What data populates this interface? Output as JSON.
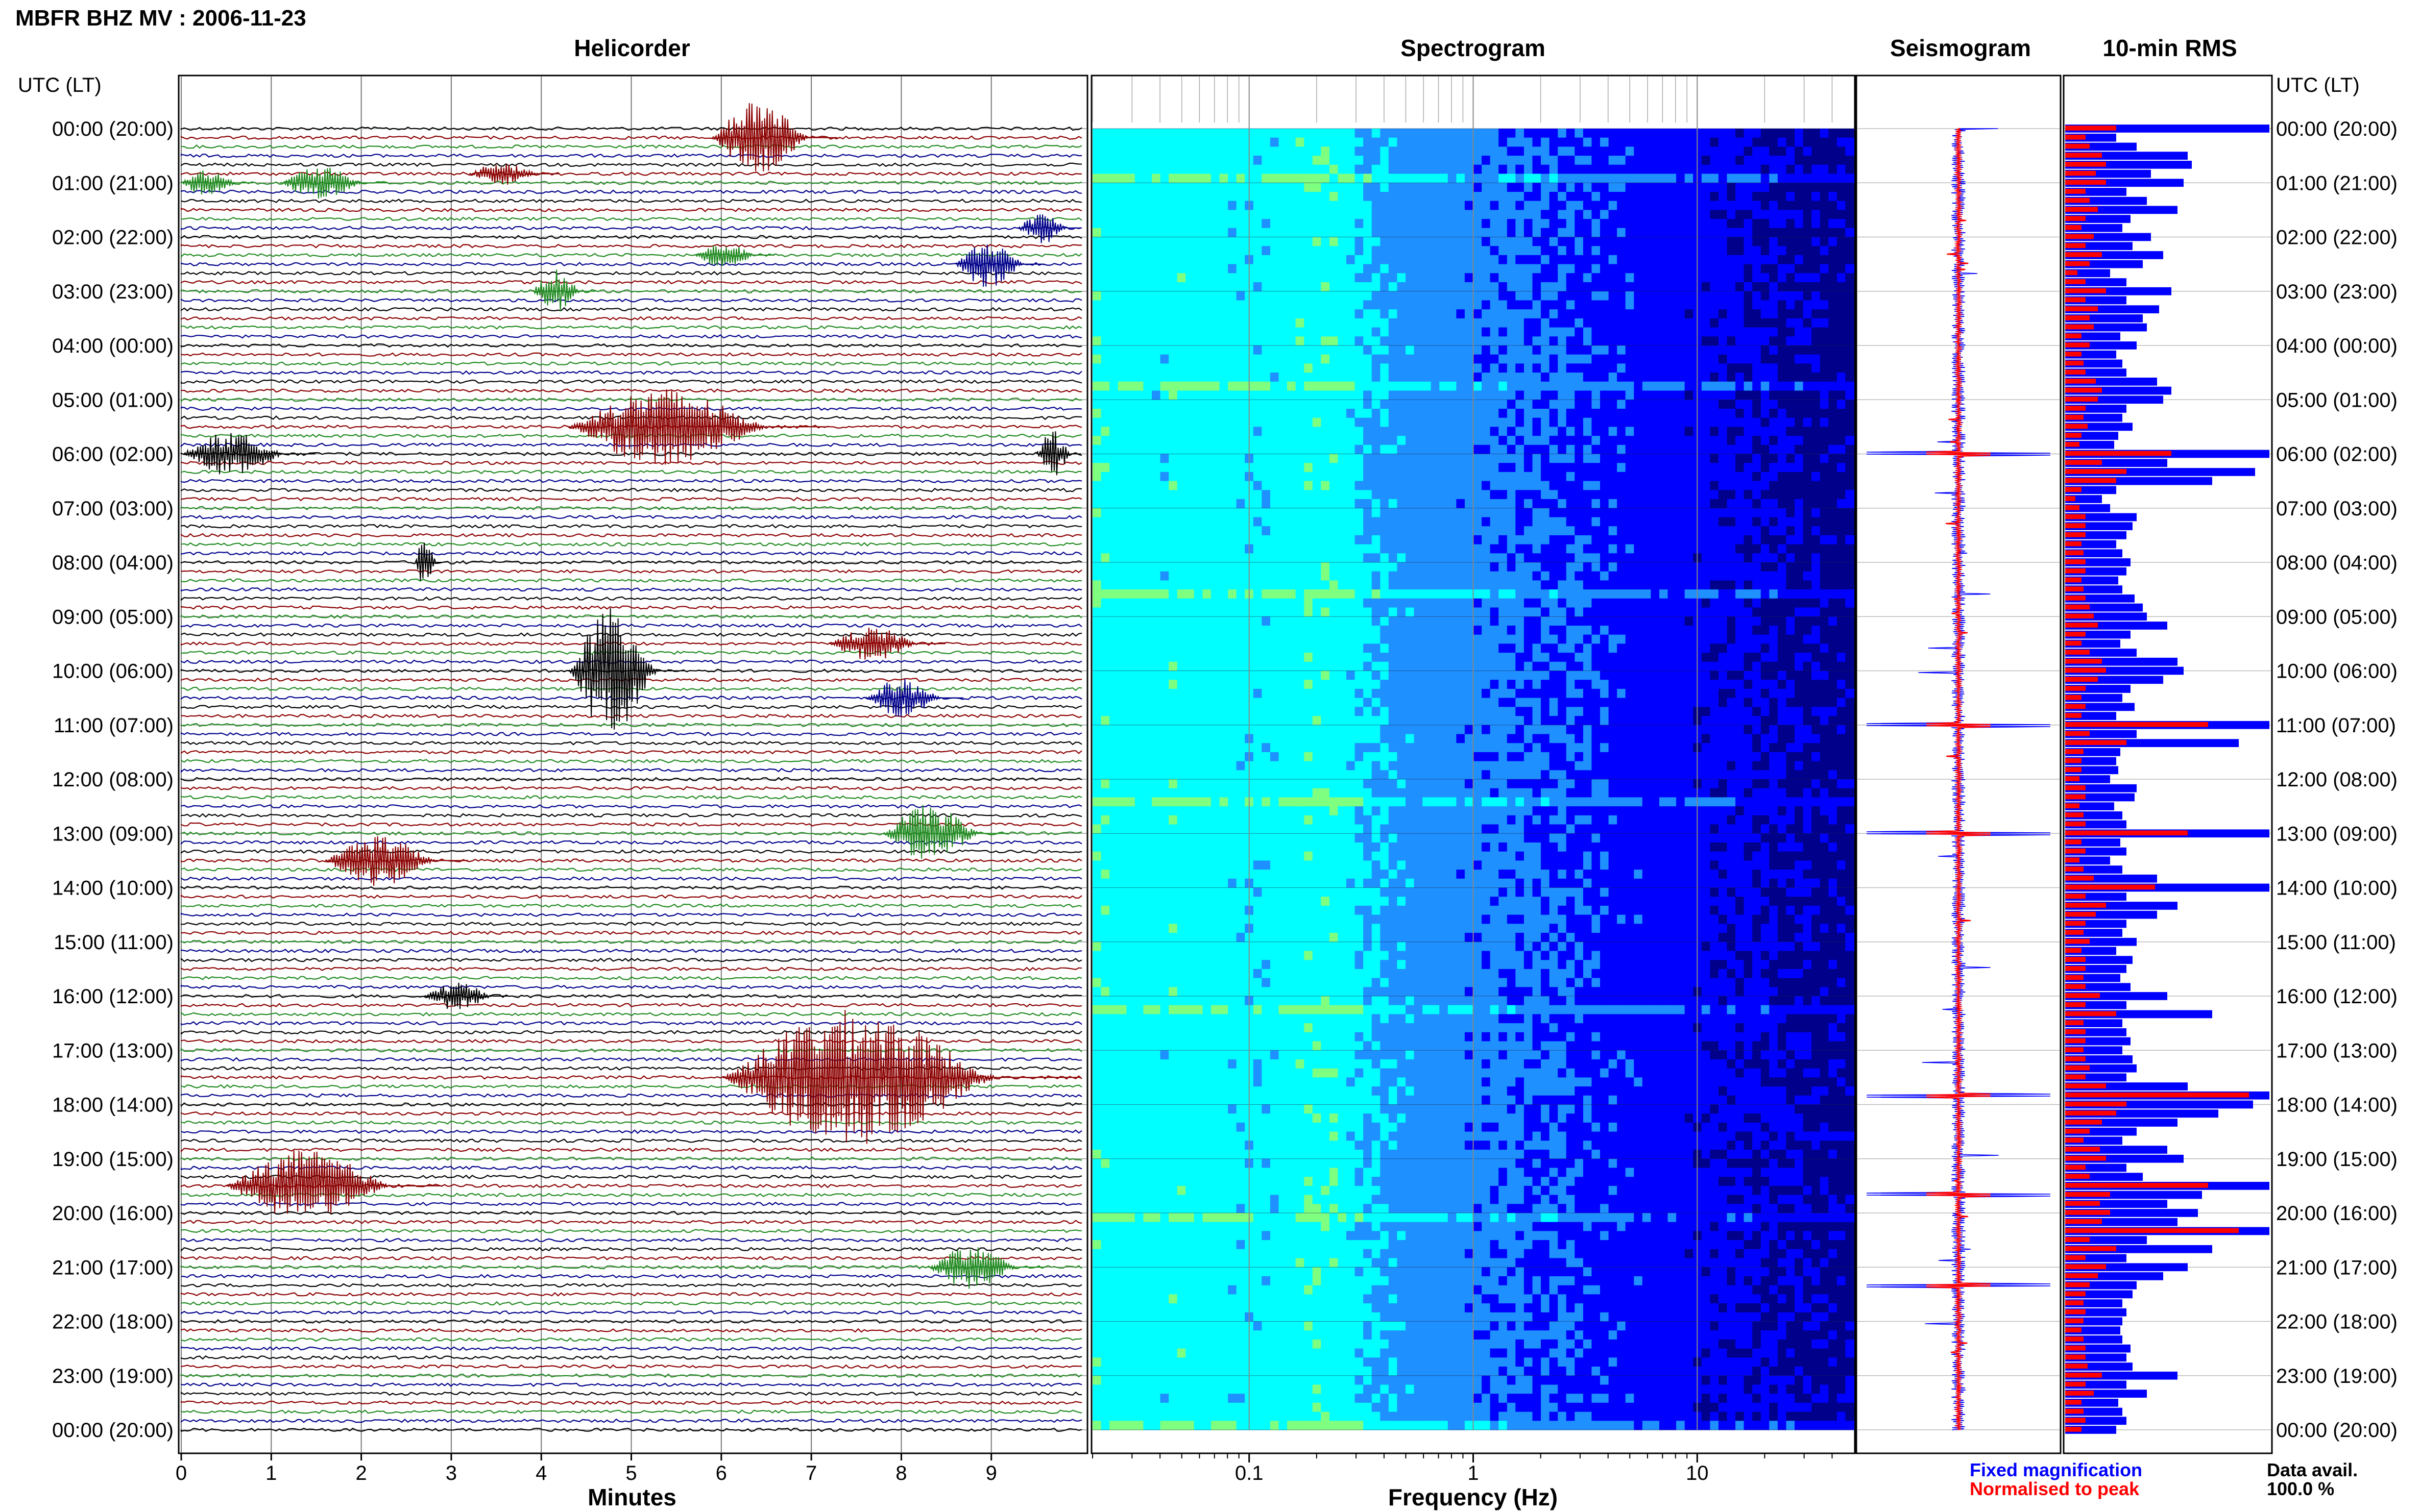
{
  "figure_title": "MBFR BHZ MV : 2006-11-23",
  "panels": {
    "helicorder": {
      "title": "Helicorder",
      "xlabel": "Minutes"
    },
    "spectrogram": {
      "title": "Spectrogram",
      "xlabel": "Frequency (Hz)"
    },
    "seismogram": {
      "title": "Seismogram"
    },
    "rms": {
      "title": "10-min RMS"
    }
  },
  "time_axis_label": "UTC (LT)",
  "time_labels": [
    "00:00 (20:00)",
    "01:00 (21:00)",
    "02:00 (22:00)",
    "03:00 (23:00)",
    "04:00 (00:00)",
    "05:00 (01:00)",
    "06:00 (02:00)",
    "07:00 (03:00)",
    "08:00 (04:00)",
    "09:00 (05:00)",
    "10:00 (06:00)",
    "11:00 (07:00)",
    "12:00 (08:00)",
    "13:00 (09:00)",
    "14:00 (10:00)",
    "15:00 (11:00)",
    "16:00 (12:00)",
    "17:00 (13:00)",
    "18:00 (14:00)",
    "19:00 (15:00)",
    "20:00 (16:00)",
    "21:00 (17:00)",
    "22:00 (18:00)",
    "23:00 (19:00)",
    "00:00 (20:00)"
  ],
  "minute_ticks": [
    "0",
    "1",
    "2",
    "3",
    "4",
    "5",
    "6",
    "7",
    "8",
    "9"
  ],
  "freq_ticks": [
    "0.1",
    "1",
    "10"
  ],
  "legend": {
    "fixed": "Fixed magnification",
    "normalised": "Normalised to peak",
    "fixed_color": "#0000ff",
    "normalised_color": "#ff0000"
  },
  "data_avail": {
    "label": "Data avail.",
    "value": "100.0 %"
  },
  "colors": {
    "trace_cycle": [
      "#000000",
      "#8b0000",
      "#228b22",
      "#00008b"
    ],
    "rms_fixed": "#0000ff",
    "rms_norm": "#ff0000"
  },
  "chart_data": [
    {
      "type": "line",
      "name": "helicorder",
      "x_unit": "minutes",
      "xlim": [
        0,
        10
      ],
      "rows_per_hour": 6,
      "time_range_utc": [
        "00:00",
        "24:00"
      ],
      "series": [
        {
          "hour": 0.0,
          "row": 1,
          "start": 5.9,
          "end": 7.3,
          "amp": 1.6
        },
        {
          "hour": 0.0,
          "row": 5,
          "start": 3.2,
          "end": 4.2,
          "amp": 0.5
        },
        {
          "hour": 0.5,
          "row": 3,
          "start": 1.1,
          "end": 2.3,
          "amp": 0.7
        },
        {
          "hour": 1.0,
          "row": 0,
          "start": 0.0,
          "end": 0.8,
          "amp": 0.6
        },
        {
          "hour": 1.0,
          "row": 5,
          "start": 9.3,
          "end": 10.0,
          "amp": 0.7
        },
        {
          "hour": 2.0,
          "row": 2,
          "start": 5.7,
          "end": 6.6,
          "amp": 0.5
        },
        {
          "hour": 2.5,
          "row": 0,
          "start": 8.6,
          "end": 9.6,
          "amp": 1.0
        },
        {
          "hour": 3.0,
          "row": 0,
          "start": 3.9,
          "end": 4.6,
          "amp": 0.9
        },
        {
          "hour": 5.5,
          "row": 0,
          "start": 4.3,
          "end": 7.2,
          "amp": 1.6
        },
        {
          "hour": 6.0,
          "row": 0,
          "start": 0.0,
          "end": 1.5,
          "amp": 0.9
        },
        {
          "hour": 6.0,
          "row": 0,
          "start": 9.5,
          "end": 10.0,
          "amp": 1.0
        },
        {
          "hour": 8.0,
          "row": 0,
          "start": 2.6,
          "end": 2.9,
          "amp": 1.1
        },
        {
          "hour": 9.5,
          "row": 0,
          "start": 7.2,
          "end": 8.5,
          "amp": 0.7
        },
        {
          "hour": 10.0,
          "row": 0,
          "start": 4.3,
          "end": 5.6,
          "amp": 2.6
        },
        {
          "hour": 10.5,
          "row": 0,
          "start": 7.6,
          "end": 8.7,
          "amp": 0.8
        },
        {
          "hour": 13.0,
          "row": 0,
          "start": 7.8,
          "end": 9.2,
          "amp": 1.2
        },
        {
          "hour": 13.5,
          "row": 0,
          "start": 1.6,
          "end": 3.2,
          "amp": 1.1
        },
        {
          "hour": 16.0,
          "row": 0,
          "start": 2.7,
          "end": 3.7,
          "amp": 0.6
        },
        {
          "hour": 17.5,
          "row": 0,
          "start": 6.0,
          "end": 10.0,
          "amp": 2.8
        },
        {
          "hour": 19.5,
          "row": 0,
          "start": 0.5,
          "end": 2.9,
          "amp": 1.5
        },
        {
          "hour": 21.0,
          "row": 0,
          "start": 8.3,
          "end": 9.6,
          "amp": 0.9
        }
      ]
    },
    {
      "type": "heatmap",
      "name": "spectrogram",
      "xscale": "log",
      "xlim": [
        0.02,
        50
      ],
      "x_unit": "Hz",
      "colormap": [
        "#00008b",
        "#0000ff",
        "#1e90ff",
        "#00ffff",
        "#7fff7f",
        "#ffff00",
        "#ff0000"
      ]
    },
    {
      "type": "line",
      "name": "seismogram",
      "series": [
        {
          "name": "Fixed magnification",
          "color": "#0000ff"
        },
        {
          "name": "Normalised to peak",
          "color": "#ff0000"
        }
      ]
    },
    {
      "type": "bar",
      "name": "10-min RMS",
      "orientation": "horizontal",
      "bins_per_hour": 6,
      "fixed_values": [
        1.0,
        0.25,
        0.35,
        0.6,
        0.62,
        0.42,
        0.58,
        0.3,
        0.4,
        0.55,
        0.32,
        0.28,
        0.42,
        0.33,
        0.48,
        0.38,
        0.22,
        0.3,
        0.52,
        0.3,
        0.46,
        0.38,
        0.4,
        0.27,
        0.35,
        0.25,
        0.28,
        0.3,
        0.45,
        0.52,
        0.48,
        0.3,
        0.28,
        0.33,
        0.26,
        0.24,
        1.0,
        0.5,
        0.93,
        0.72,
        0.25,
        0.18,
        0.22,
        0.35,
        0.33,
        0.3,
        0.25,
        0.28,
        0.32,
        0.3,
        0.26,
        0.28,
        0.34,
        0.38,
        0.4,
        0.5,
        0.32,
        0.27,
        0.35,
        0.55,
        0.58,
        0.48,
        0.32,
        0.28,
        0.34,
        0.25,
        1.0,
        0.35,
        0.85,
        0.27,
        0.25,
        0.26,
        0.22,
        0.35,
        0.34,
        0.24,
        0.28,
        0.3,
        1.0,
        0.27,
        0.3,
        0.22,
        0.28,
        0.45,
        1.0,
        0.3,
        0.55,
        0.45,
        0.3,
        0.28,
        0.35,
        0.25,
        0.33,
        0.3,
        0.27,
        0.32,
        0.5,
        0.3,
        0.72,
        0.28,
        0.3,
        0.32,
        0.28,
        0.33,
        0.35,
        0.3,
        0.6,
        1.0,
        0.92,
        0.75,
        0.55,
        0.35,
        0.28,
        0.5,
        0.58,
        0.3,
        0.38,
        1.0,
        0.67,
        0.5,
        0.65,
        0.55,
        1.0,
        0.4,
        0.72,
        0.3,
        0.6,
        0.48,
        0.35,
        0.33,
        0.28,
        0.3,
        0.28,
        0.27,
        0.28,
        0.32,
        0.3,
        0.33,
        0.55,
        0.3,
        0.4,
        0.26,
        0.28,
        0.3,
        0.25
      ],
      "norm_values": [
        0.25,
        0.1,
        0.12,
        0.18,
        0.2,
        0.15,
        0.2,
        0.1,
        0.12,
        0.16,
        0.1,
        0.08,
        0.14,
        0.1,
        0.18,
        0.12,
        0.06,
        0.1,
        0.2,
        0.1,
        0.16,
        0.12,
        0.14,
        0.08,
        0.12,
        0.08,
        0.09,
        0.1,
        0.15,
        0.18,
        0.16,
        0.1,
        0.09,
        0.11,
        0.08,
        0.07,
        0.52,
        0.18,
        0.3,
        0.25,
        0.08,
        0.05,
        0.07,
        0.1,
        0.1,
        0.1,
        0.08,
        0.09,
        0.1,
        0.1,
        0.08,
        0.09,
        0.1,
        0.12,
        0.14,
        0.16,
        0.1,
        0.08,
        0.12,
        0.18,
        0.2,
        0.16,
        0.1,
        0.08,
        0.1,
        0.08,
        0.7,
        0.12,
        0.3,
        0.09,
        0.08,
        0.08,
        0.07,
        0.1,
        0.1,
        0.07,
        0.09,
        0.1,
        0.6,
        0.08,
        0.1,
        0.07,
        0.09,
        0.14,
        0.44,
        0.1,
        0.2,
        0.15,
        0.1,
        0.09,
        0.12,
        0.08,
        0.1,
        0.1,
        0.09,
        0.1,
        0.17,
        0.1,
        0.25,
        0.09,
        0.1,
        0.1,
        0.09,
        0.1,
        0.12,
        0.1,
        0.2,
        0.9,
        0.3,
        0.25,
        0.18,
        0.12,
        0.09,
        0.17,
        0.2,
        0.1,
        0.12,
        0.7,
        0.22,
        0.17,
        0.22,
        0.18,
        0.85,
        0.12,
        0.25,
        0.1,
        0.2,
        0.16,
        0.12,
        0.1,
        0.09,
        0.1,
        0.09,
        0.08,
        0.09,
        0.1,
        0.1,
        0.11,
        0.18,
        0.1,
        0.14,
        0.08,
        0.09,
        0.1,
        0.08
      ]
    }
  ]
}
